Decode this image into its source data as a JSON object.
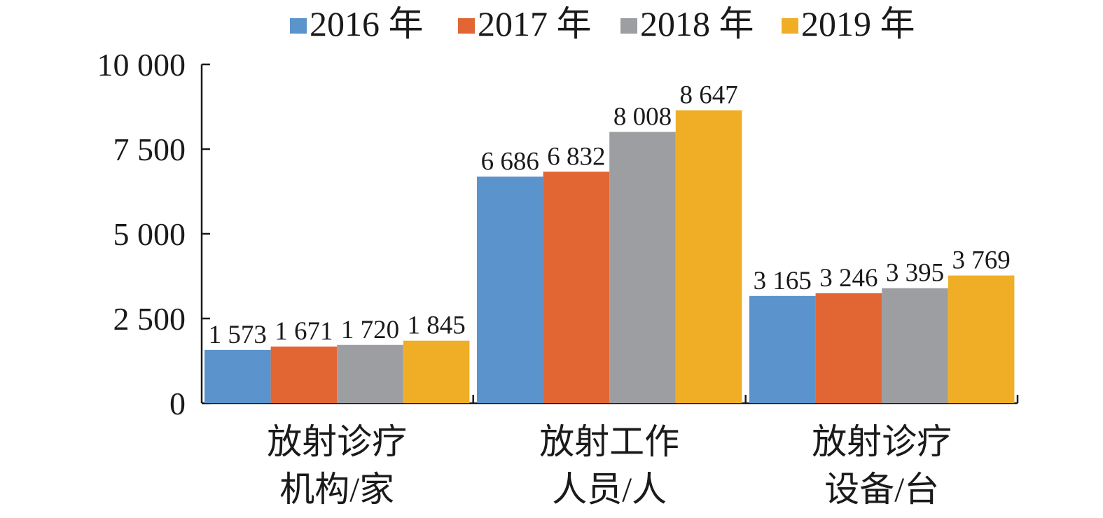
{
  "chart_data": {
    "type": "bar",
    "title": "",
    "xlabel": "",
    "ylabel": "",
    "categories": [
      [
        "放射诊疗",
        "机构/家"
      ],
      [
        "放射工作",
        "人员/人"
      ],
      [
        "放射诊疗",
        "设备/台"
      ]
    ],
    "series": [
      {
        "name": "2016 年",
        "color": "#5b93cc",
        "values": [
          1573,
          6686,
          3165
        ],
        "labels": [
          "1 573",
          "6 686",
          "3 165"
        ]
      },
      {
        "name": "2017 年",
        "color": "#e16633",
        "values": [
          1671,
          6832,
          3246
        ],
        "labels": [
          "1 671",
          "6 832",
          "3 246"
        ]
      },
      {
        "name": "2018 年",
        "color": "#9d9ea1",
        "values": [
          1720,
          8008,
          3395
        ],
        "labels": [
          "1 720",
          "8 008",
          "3 395"
        ]
      },
      {
        "name": "2019 年",
        "color": "#f0ae27",
        "values": [
          1845,
          8647,
          3769
        ],
        "labels": [
          "1 845",
          "8 647",
          "3 769"
        ]
      }
    ],
    "ylim": [
      0,
      10000
    ],
    "y_ticks": [
      0,
      2500,
      5000,
      7500,
      10000
    ],
    "y_tick_labels": [
      "0",
      "2 500",
      "5 000",
      "7 500",
      "10 000"
    ],
    "grid": false,
    "legend_position": "top-center",
    "data_labels": true
  }
}
